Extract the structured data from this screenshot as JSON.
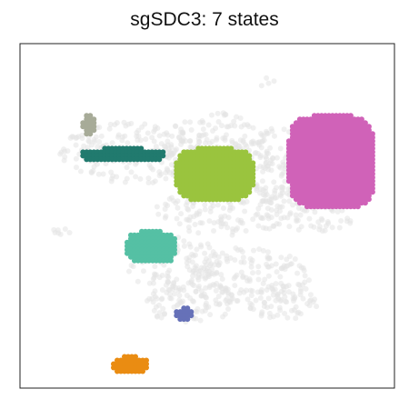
{
  "chart_data": {
    "type": "scatter",
    "title": "sgSDC3: 7 states",
    "xlabel": "",
    "ylabel": "",
    "grid": false,
    "legend": "none",
    "background_color": "#e3e3e3",
    "states": [
      {
        "color": "#a7ab98",
        "x": [
          -0.73,
          -0.66
        ],
        "y": [
          0.52,
          0.64
        ]
      },
      {
        "color": "#217a6e",
        "x": [
          -0.73,
          -0.25
        ],
        "y": [
          0.35,
          0.43
        ]
      },
      {
        "color": "#9ac43e",
        "x": [
          -0.18,
          0.27
        ],
        "y": [
          0.1,
          0.43
        ]
      },
      {
        "color": "#d062b8",
        "x": [
          0.48,
          0.98
        ],
        "y": [
          0.05,
          0.64
        ]
      },
      {
        "color": "#55c0a4",
        "x": [
          -0.47,
          -0.19
        ],
        "y": [
          -0.3,
          -0.1
        ]
      },
      {
        "color": "#6671b8",
        "x": [
          -0.18,
          -0.09
        ],
        "y": [
          -0.66,
          -0.59
        ]
      },
      {
        "color": "#ea8c12",
        "x": [
          -0.55,
          -0.35
        ],
        "y": [
          -1.0,
          -0.9
        ]
      }
    ]
  }
}
